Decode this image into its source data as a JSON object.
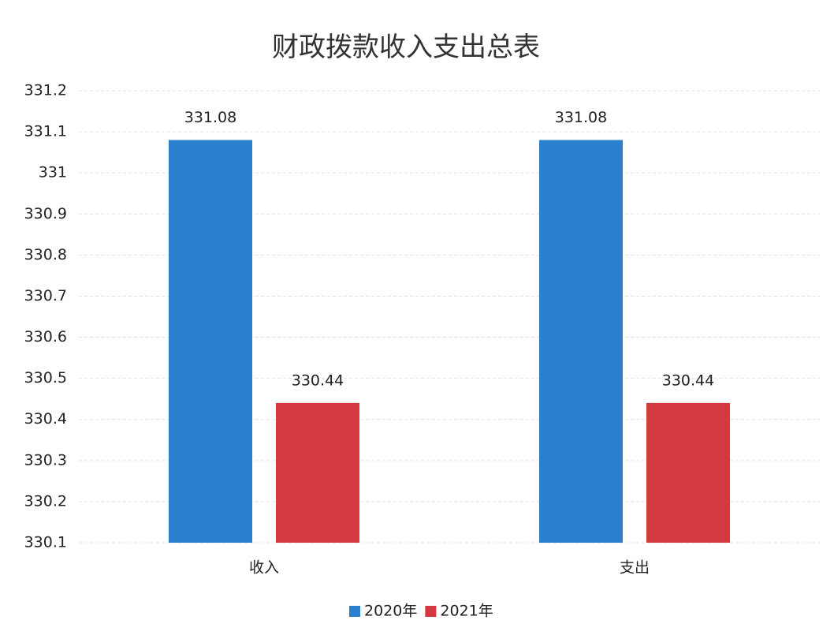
{
  "chart_data": {
    "type": "bar",
    "title": "财政拨款收入支出总表",
    "categories": [
      "收入",
      "支出"
    ],
    "series": [
      {
        "name": "2020年",
        "color": "#2a7fce",
        "values": [
          331.08,
          331.08
        ]
      },
      {
        "name": "2021年",
        "color": "#d23a3f",
        "values": [
          330.44,
          330.44
        ]
      }
    ],
    "ylim": [
      330.1,
      331.2
    ],
    "yticks": [
      330.1,
      330.2,
      330.3,
      330.4,
      330.5,
      330.6,
      330.7,
      330.8,
      330.9,
      331,
      331.1,
      331.2
    ],
    "grid": true,
    "legend": "bottom"
  }
}
